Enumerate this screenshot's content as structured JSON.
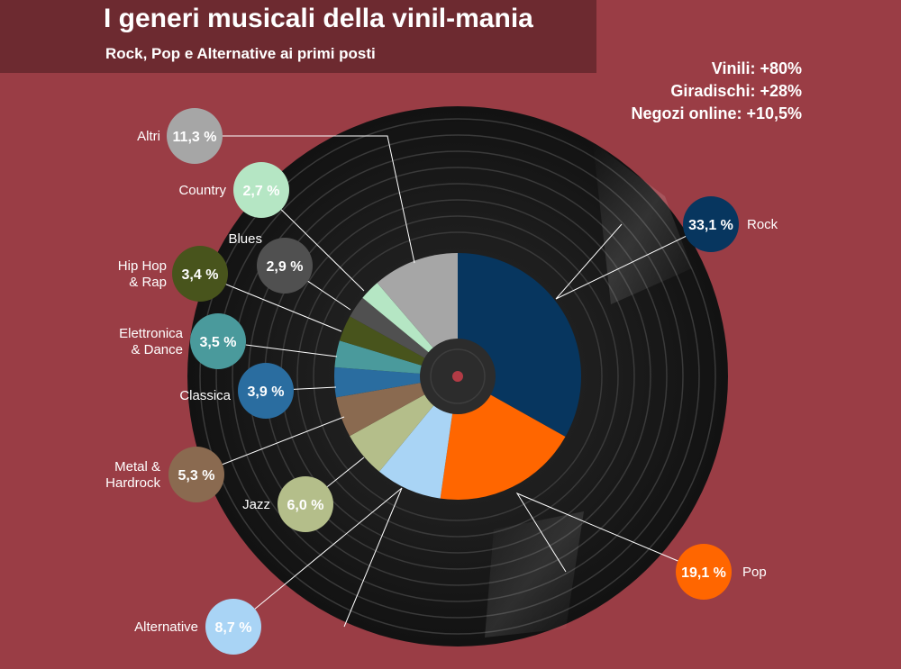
{
  "header": {
    "title": "I generi musicali della vinil-mania",
    "subtitle": "Rock, Pop e Alternative ai primi posti"
  },
  "stats": [
    "Vinili: +80%",
    "Giradischi: +28%",
    "Negozi online: +10,5%"
  ],
  "colors": {
    "background": "#9a3d45",
    "title_band": "#6d2a30",
    "record": "#1c1c1c",
    "label": "#2c2c2c"
  },
  "chart_data": {
    "type": "pie",
    "title": "I generi musicali della vinil-mania",
    "subtitle": "Rock, Pop e Alternative ai primi posti",
    "unit": "%",
    "slices": [
      {
        "name": "Rock",
        "value": 33.1,
        "label": "33,1 %",
        "color": "#07365f"
      },
      {
        "name": "Pop",
        "value": 19.1,
        "label": "19,1 %",
        "color": "#ff6600"
      },
      {
        "name": "Alternative",
        "value": 8.7,
        "label": "8,7 %",
        "color": "#a9d4f5"
      },
      {
        "name": "Jazz",
        "value": 6.0,
        "label": "6,0 %",
        "color": "#b4be8a"
      },
      {
        "name": "Metal & Hardrock",
        "value": 5.3,
        "label": "5,3 %",
        "color": "#8a6a50"
      },
      {
        "name": "Classica",
        "value": 3.9,
        "label": "3,9 %",
        "color": "#2a6da0"
      },
      {
        "name": "Elettronica & Dance",
        "value": 3.5,
        "label": "3,5 %",
        "color": "#4a9a9c"
      },
      {
        "name": "Hip Hop & Rap",
        "value": 3.4,
        "label": "3,4 %",
        "color": "#48541c"
      },
      {
        "name": "Blues",
        "value": 2.9,
        "label": "2,9 %",
        "color": "#505050"
      },
      {
        "name": "Country",
        "value": 2.7,
        "label": "2,7 %",
        "color": "#b5e6c4"
      },
      {
        "name": "Altri",
        "value": 11.3,
        "label": "11,3 %",
        "color": "#a6a6a6"
      }
    ]
  }
}
